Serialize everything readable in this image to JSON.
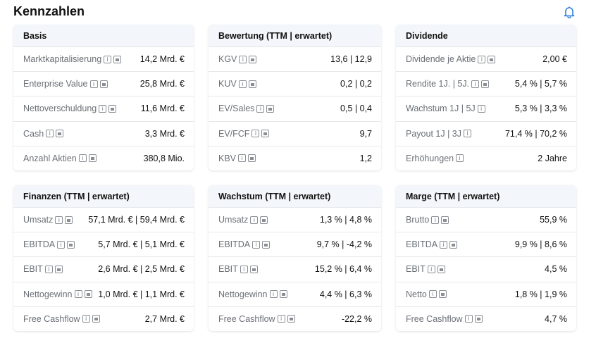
{
  "title": "Kennzahlen",
  "cards": [
    {
      "title": "Basis",
      "rows": [
        {
          "label": "Marktkapitalisierung",
          "value": "14,2 Mrd. €",
          "chart": true
        },
        {
          "label": "Enterprise Value",
          "value": "25,8 Mrd. €",
          "chart": true
        },
        {
          "label": "Nettoverschuldung",
          "value": "11,6 Mrd. €",
          "chart": true
        },
        {
          "label": "Cash",
          "value": "3,3 Mrd. €",
          "chart": true
        },
        {
          "label": "Anzahl Aktien",
          "value": "380,8 Mio.",
          "chart": true
        }
      ]
    },
    {
      "title": "Bewertung (TTM | erwartet)",
      "rows": [
        {
          "label": "KGV",
          "value": "13,6 | 12,9",
          "chart": true
        },
        {
          "label": "KUV",
          "value": "0,2 | 0,2",
          "chart": true
        },
        {
          "label": "EV/Sales",
          "value": "0,5 | 0,4",
          "chart": true
        },
        {
          "label": "EV/FCF",
          "value": "9,7",
          "chart": true
        },
        {
          "label": "KBV",
          "value": "1,2",
          "chart": true
        }
      ]
    },
    {
      "title": "Dividende",
      "rows": [
        {
          "label": "Dividende je Aktie",
          "value": "2,00 €",
          "chart": true
        },
        {
          "label": "Rendite 1J. | 5J.",
          "value": "5,4 % | 5,7 %",
          "chart": true
        },
        {
          "label": "Wachstum 1J | 5J",
          "value": "5,3 % | 3,3 %",
          "chart": false
        },
        {
          "label": "Payout 1J | 3J",
          "value": "71,4 % | 70,2 %",
          "chart": false
        },
        {
          "label": "Erhöhungen",
          "value": "2 Jahre",
          "chart": false
        }
      ]
    },
    {
      "title": "Finanzen (TTM | erwartet)",
      "rows": [
        {
          "label": "Umsatz",
          "value": "57,1 Mrd. € | 59,4 Mrd. €",
          "chart": true
        },
        {
          "label": "EBITDA",
          "value": "5,7 Mrd. € | 5,1 Mrd. €",
          "chart": true
        },
        {
          "label": "EBIT",
          "value": "2,6 Mrd. € | 2,5 Mrd. €",
          "chart": true
        },
        {
          "label": "Nettogewinn",
          "value": "1,0 Mrd. € | 1,1 Mrd. €",
          "chart": true
        },
        {
          "label": "Free Cashflow",
          "value": "2,7 Mrd. €",
          "chart": true
        }
      ]
    },
    {
      "title": "Wachstum (TTM | erwartet)",
      "rows": [
        {
          "label": "Umsatz",
          "value": "1,3 % | 4,8 %",
          "chart": true
        },
        {
          "label": "EBITDA",
          "value": "9,7 % | -4,2 %",
          "chart": true
        },
        {
          "label": "EBIT",
          "value": "15,2 % | 6,4 %",
          "chart": true
        },
        {
          "label": "Nettogewinn",
          "value": "4,4 % | 6,3 %",
          "chart": true
        },
        {
          "label": "Free Cashflow",
          "value": "-22,2 %",
          "chart": true
        }
      ]
    },
    {
      "title": "Marge (TTM | erwartet)",
      "rows": [
        {
          "label": "Brutto",
          "value": "55,9 %",
          "chart": true
        },
        {
          "label": "EBITDA",
          "value": "9,9 % | 8,6 %",
          "chart": true
        },
        {
          "label": "EBIT",
          "value": "4,5 %",
          "chart": true
        },
        {
          "label": "Netto",
          "value": "1,8 % | 1,9 %",
          "chart": true
        },
        {
          "label": "Free Cashflow",
          "value": "4,7 %",
          "chart": true
        }
      ]
    }
  ]
}
